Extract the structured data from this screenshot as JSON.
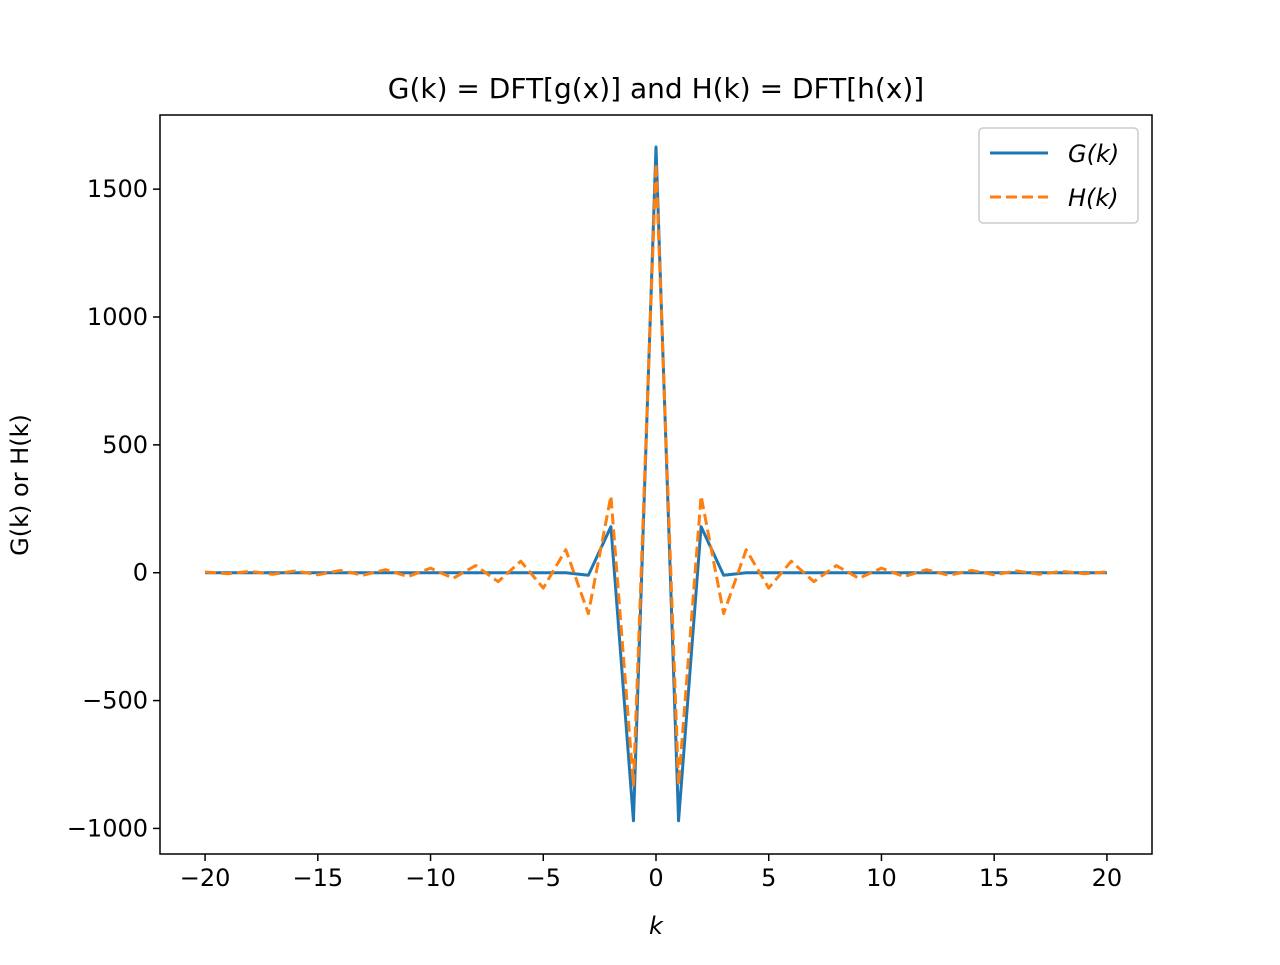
{
  "chart_data": {
    "type": "line",
    "title": "G(k) = DFT[g(x)] and H(k) = DFT[h(x)]",
    "xlabel": "k",
    "ylabel": "G(k) or H(k)",
    "xlim": [
      -22,
      22
    ],
    "ylim": [
      -1100,
      1790
    ],
    "xticks": [
      -20,
      -15,
      -10,
      -5,
      0,
      5,
      10,
      15,
      20
    ],
    "xtick_labels": [
      "−20",
      "−15",
      "−10",
      "−5",
      "0",
      "5",
      "10",
      "15",
      "20"
    ],
    "yticks": [
      -1000,
      -500,
      0,
      500,
      1000,
      1500
    ],
    "ytick_labels": [
      "−1000",
      "−500",
      "0",
      "500",
      "1000",
      "1500"
    ],
    "grid": false,
    "legend_position": "top-right",
    "x": [
      -20,
      -19,
      -18,
      -17,
      -16,
      -15,
      -14,
      -13,
      -12,
      -11,
      -10,
      -9,
      -8,
      -7,
      -6,
      -5,
      -4,
      -3,
      -2,
      -1,
      0,
      1,
      2,
      3,
      4,
      5,
      6,
      7,
      8,
      9,
      10,
      11,
      12,
      13,
      14,
      15,
      16,
      17,
      18,
      19,
      20
    ],
    "series": [
      {
        "name": "G(k)",
        "color": "#1f77b4",
        "dash": "solid",
        "values": [
          0,
          0,
          0,
          0,
          0,
          0,
          0,
          0,
          0,
          0,
          0,
          0,
          0,
          0,
          0,
          0,
          0,
          -10,
          180,
          -970,
          1665,
          -970,
          180,
          -10,
          0,
          0,
          0,
          0,
          0,
          0,
          0,
          0,
          0,
          0,
          0,
          0,
          0,
          0,
          0,
          0,
          0
        ]
      },
      {
        "name": "H(k)",
        "color": "#ff7f0e",
        "dash": "dashed",
        "values": [
          3,
          -4,
          5,
          -6,
          7,
          -8,
          9,
          -10,
          12,
          -15,
          18,
          -22,
          28,
          -35,
          45,
          -60,
          90,
          -160,
          300,
          -830,
          1600,
          -830,
          300,
          -160,
          90,
          -60,
          45,
          -35,
          28,
          -22,
          18,
          -15,
          12,
          -10,
          9,
          -8,
          7,
          -6,
          5,
          -4,
          3
        ]
      }
    ]
  }
}
